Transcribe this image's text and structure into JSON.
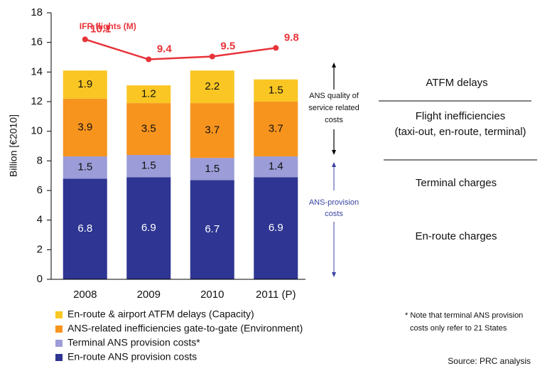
{
  "chart_data": {
    "type": "bar",
    "stacked": true,
    "ylabel": "Billion [€2010]",
    "categories": [
      "2008",
      "2009",
      "2010",
      "2011 (P)"
    ],
    "ylim": [
      0,
      18
    ],
    "yticks": [
      0,
      2,
      4,
      6,
      8,
      10,
      12,
      14,
      16,
      18
    ],
    "y2lim": [
      1.7,
      11.03
    ],
    "series": [
      {
        "name": "En-route ANS provision costs",
        "color": "#2e3592",
        "values": [
          6.8,
          6.9,
          6.7,
          6.9
        ]
      },
      {
        "name": "Terminal ANS provision costs*",
        "color": "#9c9cd8",
        "values": [
          1.5,
          1.5,
          1.5,
          1.4
        ]
      },
      {
        "name": "ANS-related inefficiencies gate-to-gate (Environment)",
        "color": "#f7941e",
        "values": [
          3.9,
          3.5,
          3.7,
          3.7
        ]
      },
      {
        "name": "En-route & airport ATFM delays (Capacity)",
        "color": "#f9c623",
        "values": [
          1.9,
          1.2,
          2.2,
          1.5
        ]
      },
      {
        "name": "IFR flights (M)",
        "type": "line",
        "axis": "y2",
        "color": "#e8333a",
        "values": [
          10.1,
          9.4,
          9.5,
          9.8
        ]
      }
    ],
    "annotations": {
      "quality": [
        "ANS quality of",
        "service related",
        "costs"
      ],
      "provision": [
        "ANS-provision",
        "costs"
      ],
      "atfm": "ATFM delays",
      "flight": [
        "Flight inefficiencies",
        "(taxi-out, en-route, terminal)"
      ],
      "terminal": "Terminal charges",
      "enroute": "En-route charges",
      "note": [
        "* Note that terminal ANS provision",
        "costs only refer to 21 States"
      ],
      "source": "Source: PRC analysis"
    }
  }
}
